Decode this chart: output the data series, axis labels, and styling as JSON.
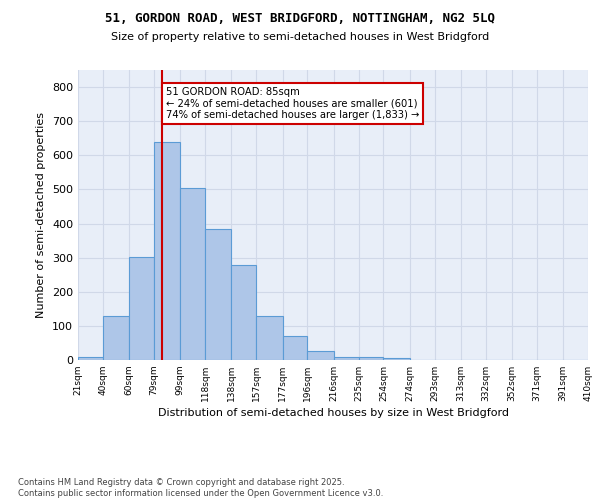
{
  "title_line1": "51, GORDON ROAD, WEST BRIDGFORD, NOTTINGHAM, NG2 5LQ",
  "title_line2": "Size of property relative to semi-detached houses in West Bridgford",
  "xlabel": "Distribution of semi-detached houses by size in West Bridgford",
  "ylabel": "Number of semi-detached properties",
  "footnote": "Contains HM Land Registry data © Crown copyright and database right 2025.\nContains public sector information licensed under the Open Government Licence v3.0.",
  "bar_edges": [
    21,
    40,
    60,
    79,
    99,
    118,
    138,
    157,
    177,
    196,
    216,
    235,
    254,
    274,
    293,
    313,
    332,
    352,
    371,
    391,
    410
  ],
  "bar_heights": [
    8,
    128,
    302,
    638,
    503,
    385,
    279,
    130,
    70,
    27,
    10,
    8,
    5,
    0,
    0,
    0,
    0,
    0,
    0,
    0
  ],
  "bar_color": "#aec6e8",
  "bar_edge_color": "#5b9bd5",
  "grid_color": "#d0d8e8",
  "background_color": "#e8eef8",
  "red_line_x": 85,
  "annotation_title": "51 GORDON ROAD: 85sqm",
  "annotation_line1": "← 24% of semi-detached houses are smaller (601)",
  "annotation_line2": "74% of semi-detached houses are larger (1,833) →",
  "annotation_box_color": "#cc0000",
  "ylim": [
    0,
    850
  ],
  "yticks": [
    0,
    100,
    200,
    300,
    400,
    500,
    600,
    700,
    800
  ],
  "tick_labels": [
    "21sqm",
    "40sqm",
    "60sqm",
    "79sqm",
    "99sqm",
    "118sqm",
    "138sqm",
    "157sqm",
    "177sqm",
    "196sqm",
    "216sqm",
    "235sqm",
    "254sqm",
    "274sqm",
    "293sqm",
    "313sqm",
    "332sqm",
    "352sqm",
    "371sqm",
    "391sqm",
    "410sqm"
  ]
}
